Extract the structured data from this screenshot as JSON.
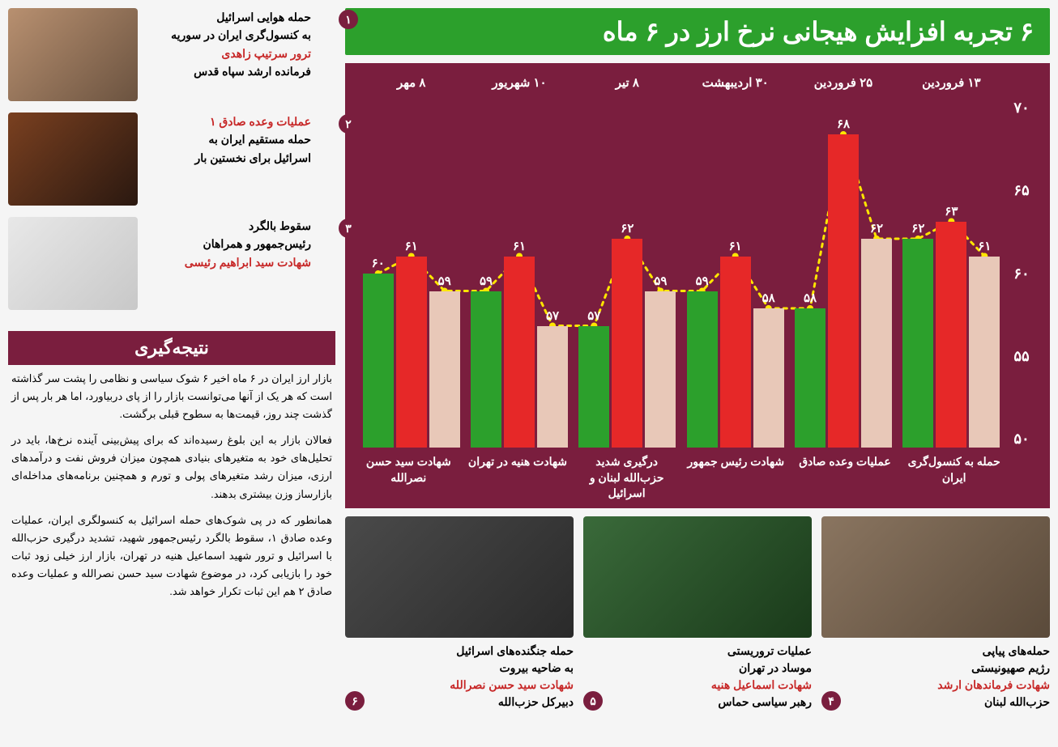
{
  "header": {
    "title": "۶ تجربه افزایش هیجانی نرخ ارز در ۶ ماه"
  },
  "chart": {
    "type": "grouped-bar",
    "background_color": "#7a1e3e",
    "text_color": "#ffffff",
    "ylim": [
      50,
      70
    ],
    "yticks": [
      "۷۰",
      "۶۵",
      "۶۰",
      "۵۵",
      "۵۰"
    ],
    "bar_colors": {
      "before": "#e8c8b8",
      "event": "#e62828",
      "after": "#2ca02c"
    },
    "trend_line_color": "#ffe600",
    "groups": [
      {
        "date": "۱۳ فروردین",
        "event": "حمله به کنسول‌گری ایران",
        "before": 61,
        "event_val": 63,
        "after": 62,
        "labels": [
          "۶۱",
          "۶۳",
          "۶۲"
        ]
      },
      {
        "date": "۲۵ فروردین",
        "event": "عملیات وعده صادق",
        "before": 62,
        "event_val": 68,
        "after": 58,
        "labels": [
          "۶۲",
          "۶۸",
          "۵۸"
        ]
      },
      {
        "date": "۳۰ اردیبهشت",
        "event": "شهادت رئیس جمهور",
        "before": 58,
        "event_val": 61,
        "after": 59,
        "labels": [
          "۵۸",
          "۶۱",
          "۵۹"
        ]
      },
      {
        "date": "۸ تیر",
        "event": "درگیری شدید حزب‌الله لبنان و اسرائیل",
        "before": 59,
        "event_val": 62,
        "after": 57,
        "labels": [
          "۵۹",
          "۶۲",
          "۵۷"
        ]
      },
      {
        "date": "۱۰ شهریور",
        "event": "شهادت هنیه در تهران",
        "before": 57,
        "event_val": 61,
        "after": 59,
        "labels": [
          "۵۷",
          "۶۱",
          "۵۹"
        ]
      },
      {
        "date": "۸ مهر",
        "event": "شهادت سید حسن نصرالله",
        "before": 59,
        "event_val": 61,
        "after": 60,
        "labels": [
          "۵۹",
          "۶۱",
          "۶۰"
        ]
      }
    ]
  },
  "left_items": [
    {
      "num": "۱",
      "img_bg": "linear-gradient(135deg,#b89070,#6b5340)",
      "lines": [
        {
          "t": "حمله هوایی اسرائیل",
          "red": false
        },
        {
          "t": "به کنسول‌گری ایران در سوریه",
          "red": false
        },
        {
          "t": "ترور سرتیپ زاهدی",
          "red": true
        },
        {
          "t": "فرمانده ارشد سپاه قدس",
          "red": false
        }
      ]
    },
    {
      "num": "۲",
      "img_bg": "linear-gradient(135deg,#7a4020,#2a1810)",
      "lines": [
        {
          "t": "عملیات وعده صادق ۱",
          "red": true
        },
        {
          "t": "حمله مستقیم ایران به",
          "red": false
        },
        {
          "t": "اسرائیل برای نخستین بار",
          "red": false
        }
      ]
    },
    {
      "num": "۳",
      "img_bg": "linear-gradient(135deg,#e8e8e8,#c8c8c8)",
      "lines": [
        {
          "t": "سقوط بالگرد",
          "red": false
        },
        {
          "t": "رئیس‌جمهور و همراهان",
          "red": false
        },
        {
          "t": "شهادت سید ابراهیم رئیسی",
          "red": true
        }
      ]
    }
  ],
  "bottom_items": [
    {
      "num": "۴",
      "img_bg": "linear-gradient(135deg,#8a7560,#5a4a3a)",
      "lines": [
        {
          "t": "حمله‌های پیاپی",
          "red": false
        },
        {
          "t": "رژیم صهیونیستی",
          "red": false
        },
        {
          "t": "شهادت فرماندهان ارشد",
          "red": true
        },
        {
          "t": "حزب‌الله لبنان",
          "red": false
        }
      ]
    },
    {
      "num": "۵",
      "img_bg": "linear-gradient(135deg,#3a6a3a,#1a3a1a)",
      "lines": [
        {
          "t": "عملیات تروریستی",
          "red": false
        },
        {
          "t": "موساد در تهران",
          "red": false
        },
        {
          "t": "شهادت اسماعیل هنیه",
          "red": true
        },
        {
          "t": "رهبر سیاسی حماس",
          "red": false
        }
      ]
    },
    {
      "num": "۶",
      "img_bg": "linear-gradient(135deg,#4a4a4a,#2a2a2a)",
      "lines": [
        {
          "t": "حمله جنگنده‌های اسرائیل",
          "red": false
        },
        {
          "t": "به ضاحیه بیروت",
          "red": false
        },
        {
          "t": "شهادت سید حسن نصرالله",
          "red": true
        },
        {
          "t": "دبیرکل حزب‌الله",
          "red": false
        }
      ]
    }
  ],
  "conclusion": {
    "header": "نتیجه‌گیری",
    "paras": [
      "بازار ارز ایران در ۶ ماه اخیر ۶ شوک سیاسی و نظامی را پشت سر گذاشته است که هر یک از آنها می‌توانست بازار را از پای دربیاورد، اما هر بار پس از گذشت چند روز، قیمت‌ها به سطوح قبلی برگشت.",
      "فعالان بازار به این بلوغ رسیده‌اند که برای پیش‌بینی آینده نرخ‌ها، باید در تحلیل‌های خود به متغیرهای بنیادی همچون میزان فروش نفت و درآمدهای ارزی، میزان رشد متغیرهای پولی و تورم و همچنین برنامه‌های مداخله‌ای بازارساز وزن بیشتری بدهند.",
      "همانطور که در پی شوک‌های حمله اسرائیل به کنسولگری ایران، عملیات وعده صادق ۱، سقوط بالگرد رئیس‌جمهور شهید، تشدید درگیری حزب‌الله با اسرائیل و ترور شهید اسماعیل هنیه در تهران، بازار ارز خیلی زود ثبات خود را بازیابی کرد، در موضوع شهادت سید حسن نصرالله و عملیات وعده صادق ۲ هم این ثبات تکرار خواهد شد."
    ]
  }
}
